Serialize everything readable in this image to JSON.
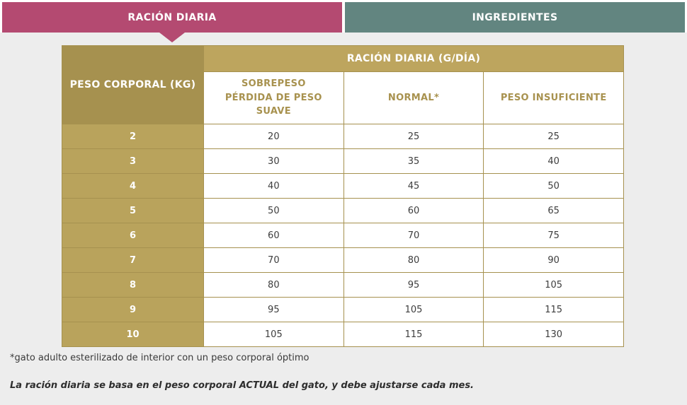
{
  "tab_bar": {
    "tabs": [
      {
        "label": "RACIÓN DIARIA",
        "active": true
      },
      {
        "label": "INGREDIENTES",
        "active": false
      }
    ]
  },
  "table": {
    "corner_header": "PESO CORPORAL (KG)",
    "banner_header": "RACIÓN DIARIA (G/DÍA)",
    "column_headers": [
      "SOBREPESO\nPÉRDIDA DE PESO\nSUAVE",
      "NORMAL*",
      "PESO INSUFICIENTE"
    ],
    "rows": [
      {
        "weight": "2",
        "values": [
          "20",
          "25",
          "25"
        ]
      },
      {
        "weight": "3",
        "values": [
          "30",
          "35",
          "40"
        ]
      },
      {
        "weight": "4",
        "values": [
          "40",
          "45",
          "50"
        ]
      },
      {
        "weight": "5",
        "values": [
          "50",
          "60",
          "65"
        ]
      },
      {
        "weight": "6",
        "values": [
          "60",
          "70",
          "75"
        ]
      },
      {
        "weight": "7",
        "values": [
          "70",
          "80",
          "90"
        ]
      },
      {
        "weight": "8",
        "values": [
          "80",
          "95",
          "105"
        ]
      },
      {
        "weight": "9",
        "values": [
          "95",
          "105",
          "115"
        ]
      },
      {
        "weight": "10",
        "values": [
          "105",
          "115",
          "130"
        ]
      }
    ]
  },
  "footnotes": {
    "asterisk_note": "*gato adulto esterilizado de interior con un peso corporal óptimo",
    "adjustment_note": "La ración diaria se basa en el peso corporal ACTUAL del gato, y debe ajustarse cada mes."
  },
  "colors": {
    "active_tab": "#b44a71",
    "inactive_tab": "#628580",
    "page_background": "#ededed",
    "header_dark_gold": "#a6914f",
    "header_light_gold": "#bda55e",
    "row_header_gold": "#b9a35c",
    "border_gold": "#a6914f",
    "gold_text": "#a8924f",
    "cell_text": "#3d3d3d"
  }
}
